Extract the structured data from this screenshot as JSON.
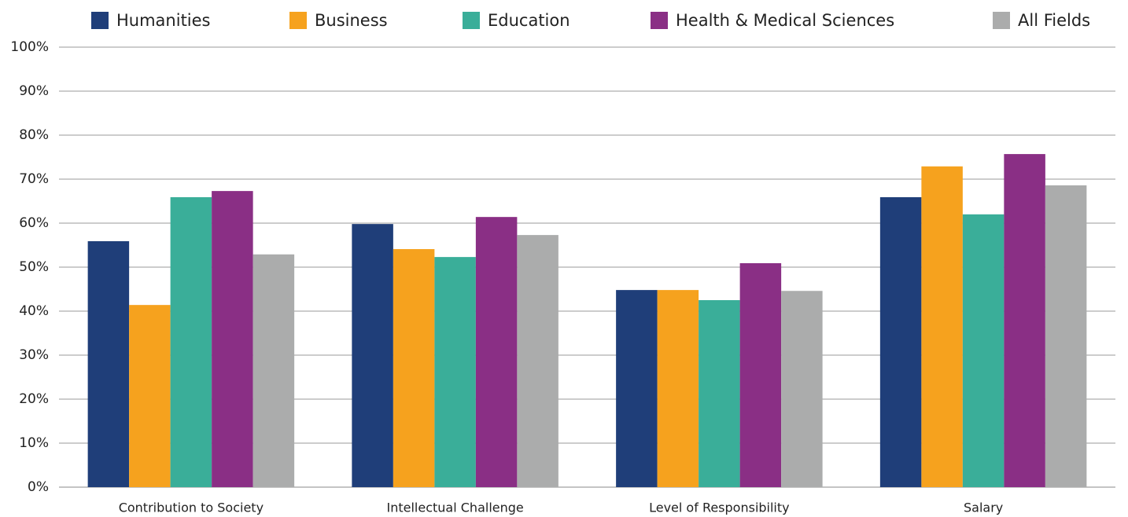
{
  "chart_data": {
    "type": "bar",
    "categories": [
      "Contribution to Society",
      "Intellectual Challenge",
      "Level of Responsibility",
      "Salary"
    ],
    "series": [
      {
        "name": "Humanities",
        "color": "#1f3e79",
        "values": [
          55.9,
          59.8,
          44.8,
          65.9
        ]
      },
      {
        "name": "Business",
        "color": "#f6a21e",
        "values": [
          41.4,
          54.1,
          44.8,
          72.9
        ]
      },
      {
        "name": "Education",
        "color": "#3aae99",
        "values": [
          65.9,
          52.3,
          42.5,
          62.0
        ]
      },
      {
        "name": "Health & Medical Sciences",
        "color": "#8a2f85",
        "values": [
          67.3,
          61.4,
          50.9,
          75.7
        ]
      },
      {
        "name": "All Fields",
        "color": "#abacac",
        "values": [
          52.9,
          57.3,
          44.6,
          68.6
        ]
      }
    ],
    "ylim": [
      0,
      100
    ],
    "yticks": [
      {
        "value": 0,
        "label": "0%"
      },
      {
        "value": 10,
        "label": "10%"
      },
      {
        "value": 20,
        "label": "20%"
      },
      {
        "value": 30,
        "label": "30%"
      },
      {
        "value": 40,
        "label": "40%"
      },
      {
        "value": 50,
        "label": "50%"
      },
      {
        "value": 60,
        "label": "60%"
      },
      {
        "value": 70,
        "label": "70%"
      },
      {
        "value": 80,
        "label": "80%"
      },
      {
        "value": 90,
        "label": "90%"
      },
      {
        "value": 100,
        "label": "100%"
      }
    ],
    "grid": true
  }
}
